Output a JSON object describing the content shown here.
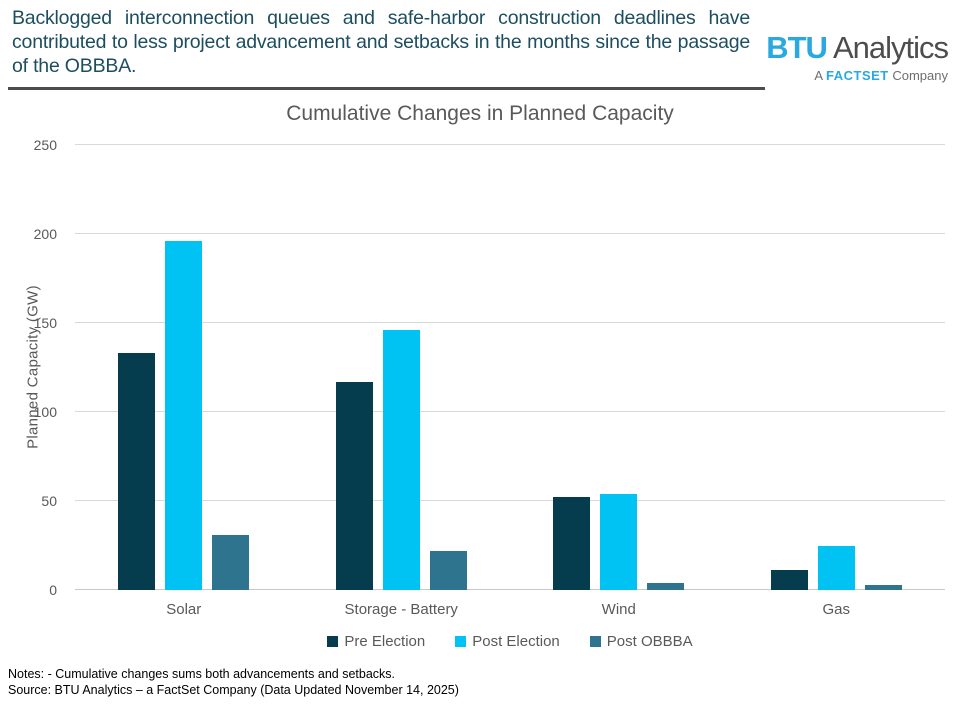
{
  "header": {
    "text": "Backlogged interconnection queues and safe-harbor construction deadlines have contributed to less project advancement and setbacks in the months since the passage of the OBBBA."
  },
  "logo": {
    "btu": "BTU",
    "analytics": "Analytics",
    "tagline_prefix": "A",
    "tagline_brand": "FACTSET",
    "tagline_suffix": "Company"
  },
  "colors": {
    "header_text": "#1D4E5F",
    "brand_cyan": "#29A9E0",
    "brand_gray": "#4D4D4D",
    "axis_text": "#595959",
    "gridline": "#D9D9D9"
  },
  "chart_data": {
    "type": "bar",
    "title": "Cumulative Changes in Planned Capacity",
    "xlabel": "",
    "ylabel": "Planned Capacity (GW)",
    "categories": [
      "Solar",
      "Storage - Battery",
      "Wind",
      "Gas"
    ],
    "series": [
      {
        "name": "Pre Election",
        "color": "#053C4E",
        "values": [
          133,
          117,
          52,
          11
        ]
      },
      {
        "name": "Post Election",
        "color": "#00C3F4",
        "values": [
          196,
          146,
          54,
          25
        ]
      },
      {
        "name": "Post OBBBA",
        "color": "#2F748E",
        "values": [
          31,
          22,
          4,
          3
        ]
      }
    ],
    "ylim": [
      0,
      250
    ],
    "yticks": [
      0,
      50,
      100,
      150,
      200,
      250
    ],
    "grid": true,
    "legend_position": "bottom"
  },
  "footer": {
    "notes": "Notes: - Cumulative changes sums both advancements and setbacks.",
    "source": "Source: BTU Analytics – a FactSet Company (Data Updated November 14, 2025)"
  }
}
